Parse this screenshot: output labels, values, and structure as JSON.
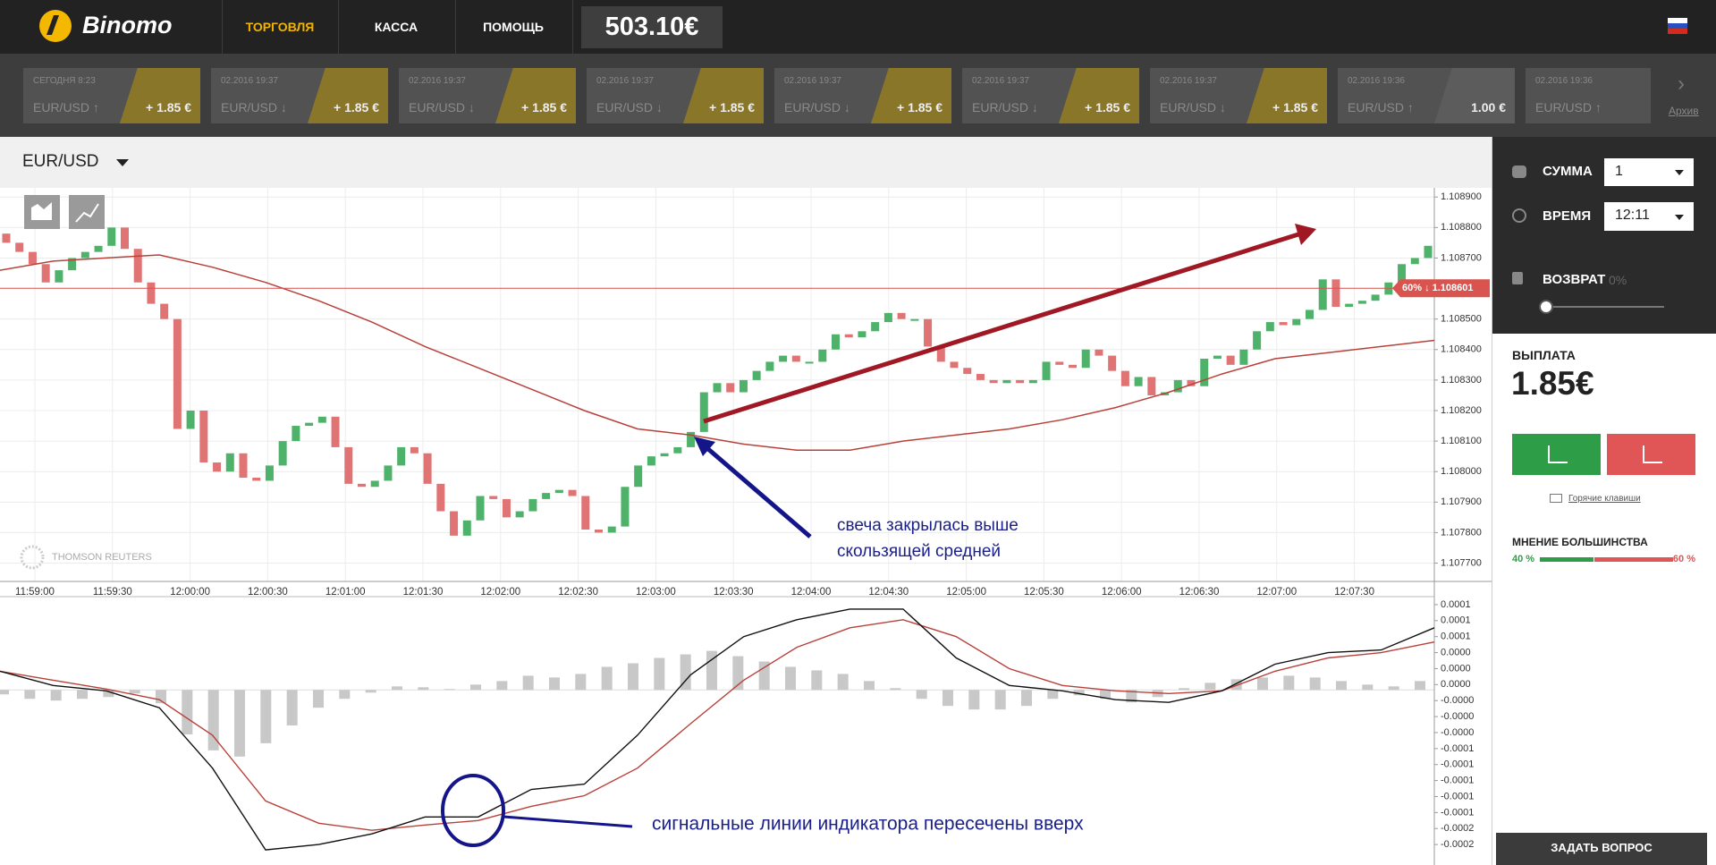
{
  "header": {
    "logo": "Binomo",
    "nav": [
      "ТОРГОВЛЯ",
      "КАССА",
      "ПОМОЩЬ"
    ],
    "balance": "503.10€"
  },
  "deals": [
    {
      "time": "СЕГОДНЯ 8:23",
      "asset": "EUR/USD ↑",
      "payout": "+ 1.85 €"
    },
    {
      "time": "02.2016 19:37",
      "asset": "EUR/USD ↓",
      "payout": "+ 1.85 €"
    },
    {
      "time": "02.2016 19:37",
      "asset": "EUR/USD ↓",
      "payout": "+ 1.85 €"
    },
    {
      "time": "02.2016 19:37",
      "asset": "EUR/USD ↓",
      "payout": "+ 1.85 €"
    },
    {
      "time": "02.2016 19:37",
      "asset": "EUR/USD ↓",
      "payout": "+ 1.85 €"
    },
    {
      "time": "02.2016 19:37",
      "asset": "EUR/USD ↓",
      "payout": "+ 1.85 €"
    },
    {
      "time": "02.2016 19:37",
      "asset": "EUR/USD ↓",
      "payout": "+ 1.85 €"
    },
    {
      "time": "02.2016 19:36",
      "asset": "EUR/USD ↑",
      "payout": "1.00 €"
    },
    {
      "time": "02.2016 19:36",
      "asset": "EUR/USD ↑"
    }
  ],
  "archive": "Архив",
  "asset": "EUR/USD",
  "watermark": "THOMSON REUTERS",
  "price_chart": {
    "type": "candlestick",
    "first_open": 1.10878,
    "close": [
      1.10875,
      1.10872,
      1.10868,
      1.10862,
      1.10866,
      1.1087,
      1.10872,
      1.10874,
      1.1088,
      1.10873,
      1.10862,
      1.10855,
      1.1085,
      1.10814,
      1.1082,
      1.10803,
      1.108,
      1.10806,
      1.10798,
      1.10797,
      1.10802,
      1.1081,
      1.10815,
      1.10816,
      1.10818,
      1.10808,
      1.10796,
      1.10795,
      1.10797,
      1.10802,
      1.10808,
      1.10806,
      1.10796,
      1.10787,
      1.10779,
      1.10784,
      1.10792,
      1.10791,
      1.10785,
      1.10787,
      1.10791,
      1.10793,
      1.10794,
      1.10792,
      1.10781,
      1.1078,
      1.10782,
      1.10795,
      1.10802,
      1.10805,
      1.10806,
      1.10808,
      1.10813,
      1.10826,
      1.10829,
      1.10826,
      1.1083,
      1.10833,
      1.10836,
      1.10838,
      1.10836,
      1.10836,
      1.1084,
      1.10845,
      1.10844,
      1.10846,
      1.10849,
      1.10852,
      1.1085,
      1.1085,
      1.10841,
      1.10836,
      1.10834,
      1.10832,
      1.1083,
      1.10829,
      1.1083,
      1.10829,
      1.1083,
      1.10836,
      1.10835,
      1.10834,
      1.1084,
      1.10838,
      1.10833,
      1.10828,
      1.10831,
      1.10825,
      1.10826,
      1.1083,
      1.10828,
      1.10837,
      1.10838,
      1.10835,
      1.1084,
      1.10846,
      1.10849,
      1.10848,
      1.1085,
      1.10853,
      1.10863,
      1.10854,
      1.10855,
      1.10856,
      1.10858,
      1.10862,
      1.10868,
      1.1087,
      1.10874
    ],
    "moving_average": [
      1.10866,
      1.10869,
      1.1087,
      1.10871,
      1.10867,
      1.10862,
      1.10856,
      1.10849,
      1.10841,
      1.10834,
      1.10827,
      1.1082,
      1.10814,
      1.10812,
      1.10809,
      1.10807,
      1.10807,
      1.1081,
      1.10812,
      1.10814,
      1.10817,
      1.10821,
      1.10826,
      1.10832,
      1.10837,
      1.10839,
      1.10841,
      1.10843
    ],
    "level": 1.108601,
    "level_label": "60% ↓ 1.108601",
    "ylim": [
      1.10764,
      1.10893
    ],
    "yticks": [
      {
        "value": 1.1089,
        "label": "1.108900"
      },
      {
        "value": 1.1088,
        "label": "1.108800"
      },
      {
        "value": 1.1087,
        "label": "1.108700"
      },
      {
        "value": 1.1086,
        "label": "1.108600"
      },
      {
        "value": 1.1085,
        "label": "1.108500"
      },
      {
        "value": 1.1084,
        "label": "1.108400"
      },
      {
        "value": 1.1083,
        "label": "1.108300"
      },
      {
        "value": 1.1082,
        "label": "1.108200"
      },
      {
        "value": 1.1081,
        "label": "1.108100"
      },
      {
        "value": 1.108,
        "label": "1.108000"
      },
      {
        "value": 1.1079,
        "label": "1.107900"
      },
      {
        "value": 1.1078,
        "label": "1.107800"
      },
      {
        "value": 1.1077,
        "label": "1.107700"
      }
    ],
    "time_labels": [
      "11:59:00",
      "11:59:30",
      "12:00:00",
      "12:00:30",
      "12:01:00",
      "12:01:30",
      "12:02:00",
      "12:02:30",
      "12:03:00",
      "12:03:30",
      "12:04:00",
      "12:04:30",
      "12:05:00",
      "12:05:30",
      "12:06:00",
      "12:06:30",
      "12:07:00",
      "12:07:30"
    ],
    "colors": {
      "up": "#4fb26a",
      "down": "#e07373",
      "ma": "#b8413a",
      "level": "#d9534f"
    }
  },
  "macd": {
    "histogram": [
      -5e-06,
      -1e-05,
      -1.2e-05,
      -1e-05,
      -8e-06,
      -4e-06,
      -1.5e-05,
      -5e-05,
      -6.8e-05,
      -7.5e-05,
      -6e-05,
      -4e-05,
      -2e-05,
      -1e-05,
      -3e-06,
      4e-06,
      3e-06,
      1e-06,
      6e-06,
      1e-05,
      1.6e-05,
      1.4e-05,
      1.8e-05,
      2.6e-05,
      3e-05,
      3.6e-05,
      4e-05,
      4.4e-05,
      3.8e-05,
      3.2e-05,
      2.6e-05,
      2.2e-05,
      1.8e-05,
      1e-05,
      2e-06,
      -1e-05,
      -1.8e-05,
      -2.2e-05,
      -2.2e-05,
      -1.8e-05,
      -1e-05,
      -6e-06,
      -1e-05,
      -1.4e-05,
      -8e-06,
      2e-06,
      8e-06,
      1.2e-05,
      1.4e-05,
      1.6e-05,
      1.4e-05,
      1e-05,
      6e-06,
      4e-06,
      1e-05
    ],
    "macd": [
      2.1e-05,
      5e-06,
      -1e-06,
      -2e-05,
      -8.8e-05,
      -0.00018,
      -0.000174,
      -0.000162,
      -0.000143,
      -0.000143,
      -0.000112,
      -0.000106,
      -5.1e-05,
      1.7e-05,
      6e-05,
      7.9e-05,
      9.1e-05,
      9.1e-05,
      3.6e-05,
      5e-06,
      -1e-06,
      -1.1e-05,
      -1.4e-05,
      -1e-06,
      2.9e-05,
      4.2e-05,
      4.5e-05,
      7e-05
    ],
    "signal": [
      2.1e-05,
      1.1e-05,
      1e-06,
      -1.1e-05,
      -5.1e-05,
      -0.000125,
      -0.00015,
      -0.000158,
      -0.000152,
      -0.000147,
      -0.000131,
      -0.000119,
      -8.8e-05,
      -3.8e-05,
      1.1e-05,
      4.8e-05,
      7e-05,
      7.9e-05,
      6e-05,
      2.4e-05,
      5e-06,
      -1e-06,
      -4e-06,
      -1e-06,
      2.1e-05,
      3.6e-05,
      4.2e-05,
      5.4e-05
    ],
    "ylim": [
      -0.000191,
      0.000105
    ],
    "yticks": [
      {
        "value": 9.6e-05,
        "label": "0.0001"
      },
      {
        "value": 7.8e-05,
        "label": "0.0001"
      },
      {
        "value": 6e-05,
        "label": "0.0001"
      },
      {
        "value": 4.2e-05,
        "label": "0.0000"
      },
      {
        "value": 2.4e-05,
        "label": "0.0000"
      },
      {
        "value": 6e-06,
        "label": "0.0000"
      },
      {
        "value": -1.2e-05,
        "label": "-0.0000"
      },
      {
        "value": -3e-05,
        "label": "-0.0000"
      },
      {
        "value": -4.8e-05,
        "label": "-0.0000"
      },
      {
        "value": -6.6e-05,
        "label": "-0.0001"
      },
      {
        "value": -8.4e-05,
        "label": "-0.0001"
      },
      {
        "value": -0.000102,
        "label": "-0.0001"
      },
      {
        "value": -0.00012,
        "label": "-0.0001"
      },
      {
        "value": -0.000138,
        "label": "-0.0001"
      },
      {
        "value": -0.000156,
        "label": "-0.0002"
      },
      {
        "value": -0.000174,
        "label": "-0.0002"
      }
    ],
    "colors": {
      "histogram": "#c8c8c8",
      "macd": "#111111",
      "signal": "#b8413a"
    }
  },
  "annotations": {
    "candle": [
      "свеча закрылась выше",
      "скользящей средней"
    ],
    "cross": "сигнальные линии индикатора пересечены вверх"
  },
  "panel": {
    "amount_label": "СУММА",
    "amount": "1",
    "time_label": "ВРЕМЯ",
    "time": "12:11",
    "refund_label": "ВОЗВРАТ",
    "refund": "0%",
    "payout_label": "ВЫПЛАТА",
    "payout": "1.85€",
    "hotkeys": "Горячие клавиши",
    "majority_label": "МНЕНИЕ БОЛЬШИНСТВА",
    "majority": {
      "up": 40,
      "down": 60,
      "up_label": "40 %",
      "down_label": "60 %"
    },
    "ask": "ЗАДАТЬ ВОПРОС"
  }
}
